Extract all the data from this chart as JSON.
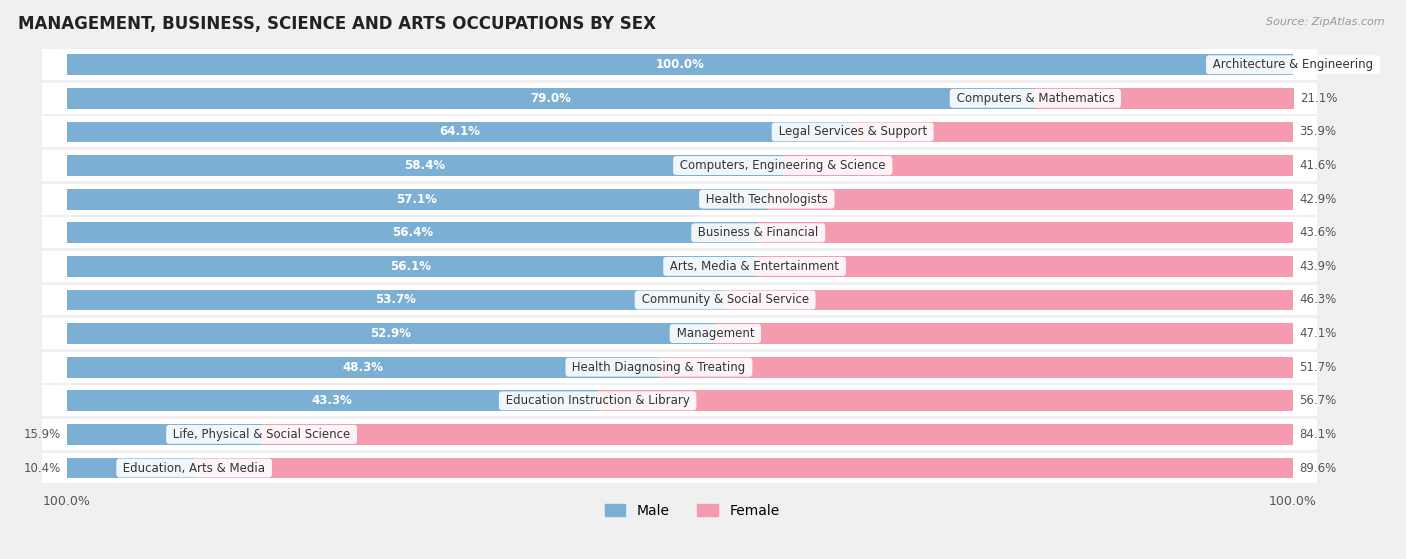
{
  "title": "MANAGEMENT, BUSINESS, SCIENCE AND ARTS OCCUPATIONS BY SEX",
  "source": "Source: ZipAtlas.com",
  "categories": [
    "Architecture & Engineering",
    "Computers & Mathematics",
    "Legal Services & Support",
    "Computers, Engineering & Science",
    "Health Technologists",
    "Business & Financial",
    "Arts, Media & Entertainment",
    "Community & Social Service",
    "Management",
    "Health Diagnosing & Treating",
    "Education Instruction & Library",
    "Life, Physical & Social Science",
    "Education, Arts & Media"
  ],
  "male": [
    100.0,
    79.0,
    64.1,
    58.4,
    57.1,
    56.4,
    56.1,
    53.7,
    52.9,
    48.3,
    43.3,
    15.9,
    10.4
  ],
  "female": [
    0.0,
    21.1,
    35.9,
    41.6,
    42.9,
    43.6,
    43.9,
    46.3,
    47.1,
    51.7,
    56.7,
    84.1,
    89.6
  ],
  "male_color": "#7bafd4",
  "female_color": "#f49bb0",
  "bg_color": "#f0f0f0",
  "bar_bg_color": "#ffffff",
  "row_bg_color": "#ffffff",
  "title_fontsize": 12,
  "label_fontsize": 8.5,
  "tick_fontsize": 9,
  "legend_fontsize": 10
}
